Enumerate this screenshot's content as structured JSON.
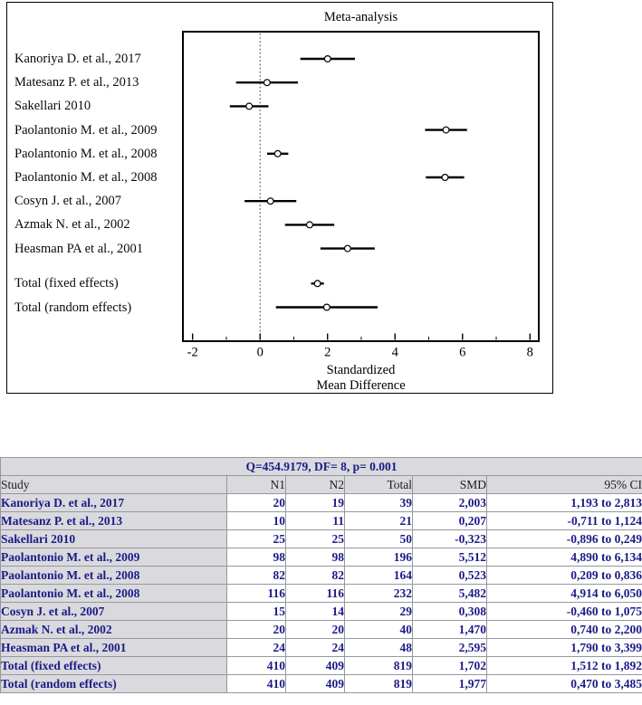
{
  "figure": {
    "title": "Meta-analysis",
    "xlabel_lines": [
      "Standardized",
      "Mean Difference"
    ]
  },
  "chart_data": {
    "type": "forest",
    "title": "Meta-analysis",
    "xlabel": "Standardized Mean Difference",
    "xlim": [
      -2.27,
      8.27
    ],
    "x_ticks_major": [
      -2,
      0,
      2,
      4,
      6,
      8
    ],
    "x_ticks_minor": [
      -1,
      1,
      3,
      5,
      7
    ],
    "zero_reference_line": 0,
    "marker": "open-circle",
    "studies": [
      {
        "label": "Kanoriya D. et al., 2017",
        "smd": 2.003,
        "ci_low": 1.193,
        "ci_high": 2.813
      },
      {
        "label": "Matesanz P. et al., 2013",
        "smd": 0.207,
        "ci_low": -0.711,
        "ci_high": 1.124
      },
      {
        "label": "Sakellari 2010",
        "smd": -0.323,
        "ci_low": -0.896,
        "ci_high": 0.249
      },
      {
        "label": "Paolantonio M. et al., 2009",
        "smd": 5.512,
        "ci_low": 4.89,
        "ci_high": 6.134
      },
      {
        "label": "Paolantonio M. et al., 2008",
        "smd": 0.523,
        "ci_low": 0.209,
        "ci_high": 0.836
      },
      {
        "label": "Paolantonio M. et al., 2008",
        "smd": 5.482,
        "ci_low": 4.914,
        "ci_high": 6.05
      },
      {
        "label": "Cosyn J. et al., 2007",
        "smd": 0.308,
        "ci_low": -0.46,
        "ci_high": 1.075
      },
      {
        "label": "Azmak N. et al., 2002",
        "smd": 1.47,
        "ci_low": 0.74,
        "ci_high": 2.2
      },
      {
        "label": "Heasman PA et al., 2001",
        "smd": 2.595,
        "ci_low": 1.79,
        "ci_high": 3.399
      },
      {
        "label": "Total (fixed effects)",
        "smd": 1.702,
        "ci_low": 1.512,
        "ci_high": 1.892,
        "total": true
      },
      {
        "label": "Total (random effects)",
        "smd": 1.977,
        "ci_low": 0.47,
        "ci_high": 3.485,
        "total": true
      }
    ]
  },
  "table": {
    "q_header": "Q=454.9179, DF= 8, p= 0.001",
    "headers": [
      "Study",
      "N1",
      "N2",
      "Total",
      "SMD",
      "95% CI"
    ],
    "rows": [
      [
        "Kanoriya D. et al., 2017",
        "20",
        "19",
        "39",
        "2,003",
        "1,193 to 2,813"
      ],
      [
        "Matesanz P. et al., 2013",
        "10",
        "11",
        "21",
        "0,207",
        "-0,711 to 1,124"
      ],
      [
        "Sakellari 2010",
        "25",
        "25",
        "50",
        "-0,323",
        "-0,896 to 0,249"
      ],
      [
        "Paolantonio M. et al., 2009",
        "98",
        "98",
        "196",
        "5,512",
        "4,890 to 6,134"
      ],
      [
        "Paolantonio M. et al., 2008",
        "82",
        "82",
        "164",
        "0,523",
        "0,209 to 0,836"
      ],
      [
        "Paolantonio M. et al., 2008",
        "116",
        "116",
        "232",
        "5,482",
        "4,914 to 6,050"
      ],
      [
        "Cosyn J. et al., 2007",
        "15",
        "14",
        "29",
        "0,308",
        "-0,460 to 1,075"
      ],
      [
        "Azmak N. et al., 2002",
        "20",
        "20",
        "40",
        "1,470",
        "0,740 to 2,200"
      ],
      [
        "Heasman PA et al., 2001",
        "24",
        "24",
        "48",
        "2,595",
        "1,790 to 3,399"
      ],
      [
        "Total (fixed effects)",
        "410",
        "409",
        "819",
        "1,702",
        "1,512 to 1,892"
      ],
      [
        "Total (random effects)",
        "410",
        "409",
        "819",
        "1,977",
        "0,470 to 3,485"
      ]
    ]
  },
  "colors": {
    "navy_text": "#1b1b87",
    "cell_gray": "#dadade",
    "table_border": "#97979d",
    "plot_black": "#000000",
    "background": "#ffffff"
  }
}
